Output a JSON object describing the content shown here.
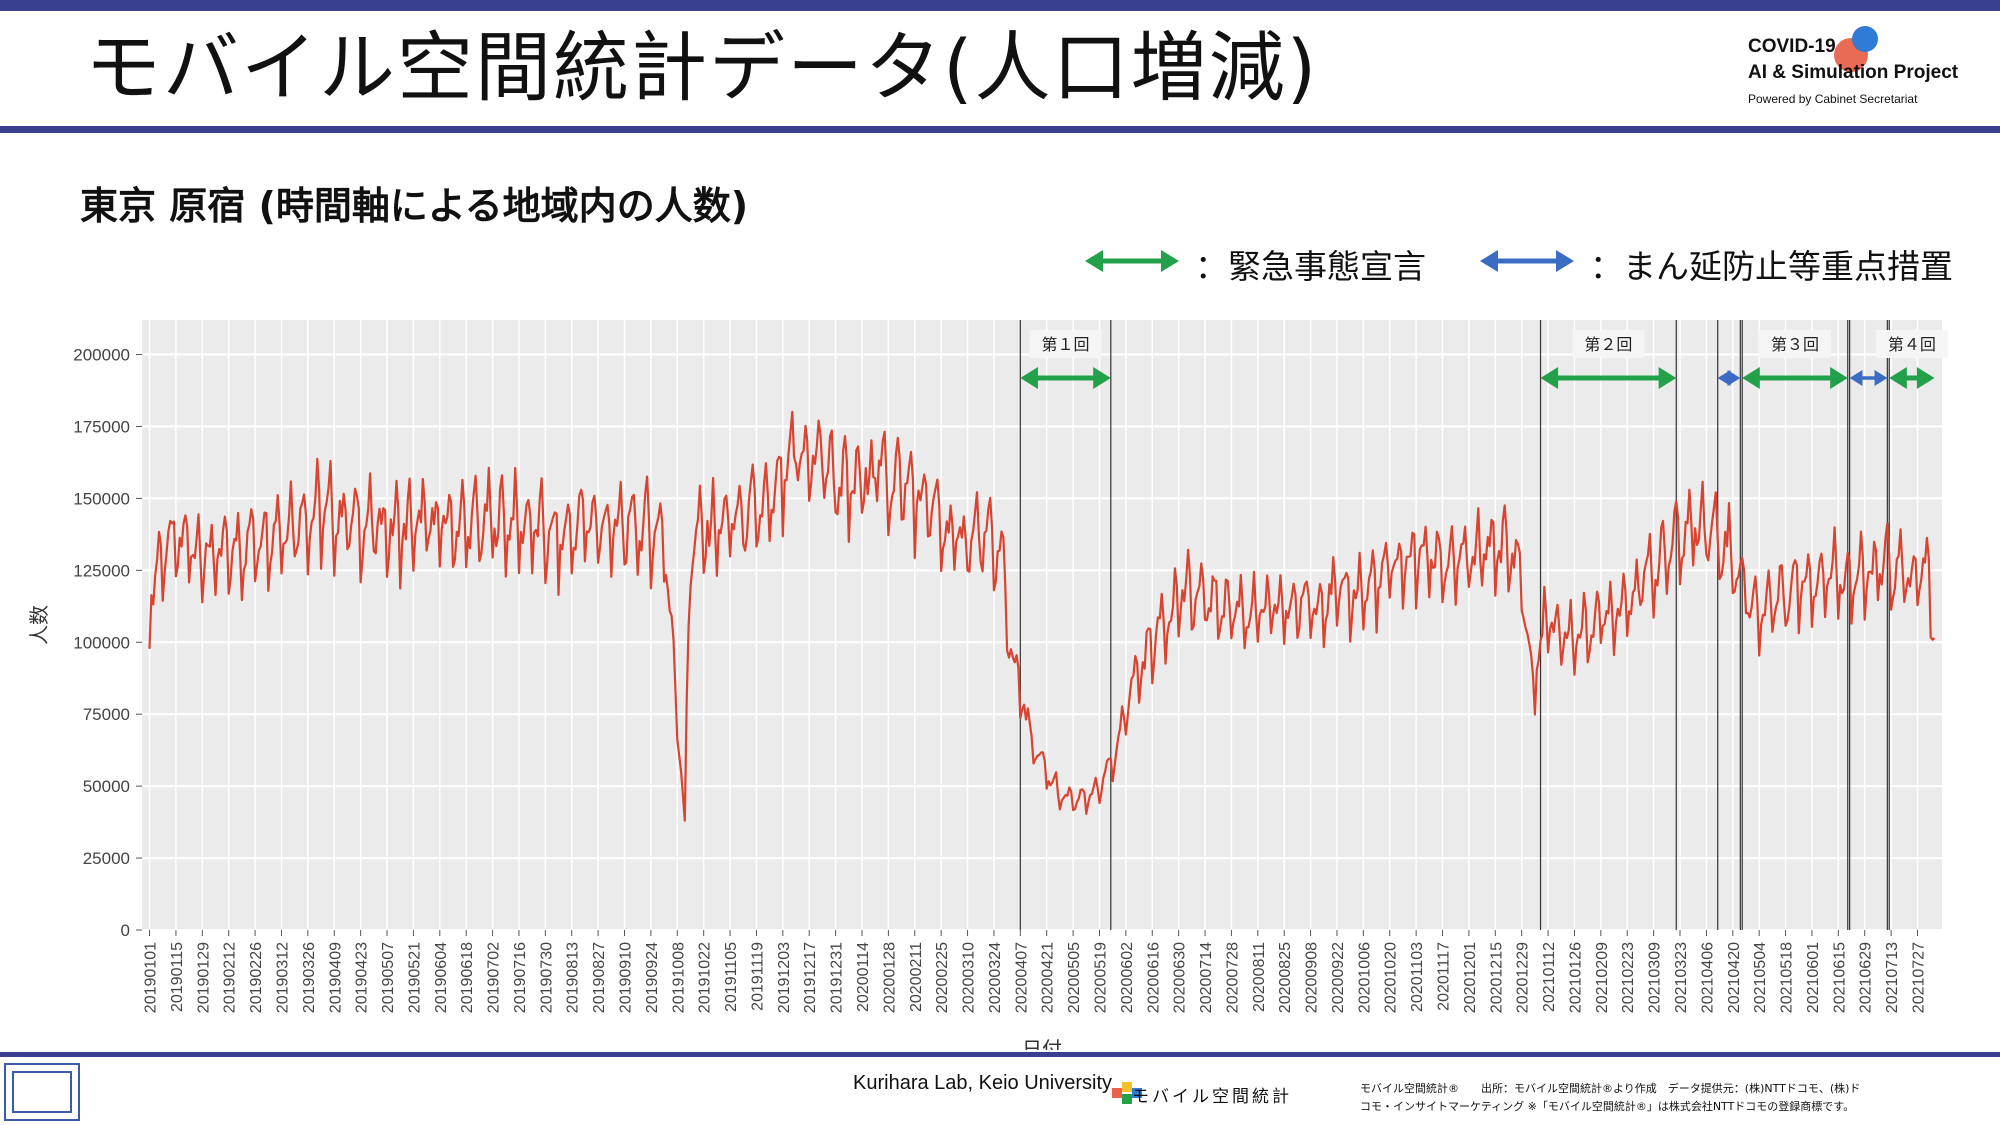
{
  "header": {
    "title": "モバイル空間統計データ(人口増減)",
    "brand_line1": "COVID-19",
    "brand_line2": "AI & Simulation Project",
    "brand_line3": "Powered by Cabinet Secretariat"
  },
  "subtitle": "東京 原宿 (時間軸による地域内の人数)",
  "legend": {
    "emergency": "：緊急事態宣言",
    "emergency_color": "#22a04a",
    "semi": "：まん延防止等重点措置",
    "semi_color": "#3b6cc4"
  },
  "footer": {
    "lab": "Kurihara Lab, Keio University",
    "mobile": "モバイル空間統計",
    "source_line1": "モバイル空間統計®　　出所：モバイル空間統計®より作成　データ提供元：(株)NTTドコモ、(株)ド",
    "source_line2": "コモ・インサイトマーケティング ※「モバイル空間統計®」は株式会社NTTドコモの登録商標です。"
  },
  "chart_data": {
    "type": "line",
    "xlabel": "日付",
    "ylabel": "人数",
    "ylim": [
      0,
      212000
    ],
    "yticks": [
      0,
      25000,
      50000,
      75000,
      100000,
      125000,
      150000,
      175000,
      200000
    ],
    "grid": true,
    "line_color": "#d9432f",
    "x_range": [
      "2019-01-01",
      "2021-08-05"
    ],
    "x_tick_labels": [
      "20190101",
      "20190115",
      "20190129",
      "20190212",
      "20190226",
      "20190312",
      "20190326",
      "20190409",
      "20190423",
      "20190507",
      "20190521",
      "20190604",
      "20190618",
      "20190702",
      "20190716",
      "20190730",
      "20190813",
      "20190827",
      "20190910",
      "20190924",
      "20191008",
      "20191022",
      "20191105",
      "20191119",
      "20191203",
      "20191217",
      "20191231",
      "20200114",
      "20200128",
      "20200211",
      "20200225",
      "20200310",
      "20200324",
      "20200407",
      "20200421",
      "20200505",
      "20200519",
      "20200602",
      "20200616",
      "20200630",
      "20200714",
      "20200728",
      "20200811",
      "20200825",
      "20200908",
      "20200922",
      "20201006",
      "20201020",
      "20201103",
      "20201117",
      "20201201",
      "20201215",
      "20201229",
      "20210112",
      "20210126",
      "20210209",
      "20210223",
      "20210309",
      "20210323",
      "20210406",
      "20210420",
      "20210504",
      "20210518",
      "20210601",
      "20210615",
      "20210629",
      "20210713",
      "20210727"
    ],
    "series": [
      {
        "points": [
          [
            "2019-01-01",
            113000
          ],
          [
            "2019-01-08",
            130000
          ],
          [
            "2019-01-22",
            132000
          ],
          [
            "2019-02-05",
            127000
          ],
          [
            "2019-02-19",
            131000
          ],
          [
            "2019-03-05",
            136000
          ],
          [
            "2019-03-19",
            140000
          ],
          [
            "2019-04-02",
            143000
          ],
          [
            "2019-04-16",
            140000
          ],
          [
            "2019-04-30",
            138000
          ],
          [
            "2019-05-14",
            137000
          ],
          [
            "2019-05-28",
            139000
          ],
          [
            "2019-06-11",
            138000
          ],
          [
            "2019-06-25",
            139000
          ],
          [
            "2019-07-09",
            140000
          ],
          [
            "2019-07-23",
            138000
          ],
          [
            "2019-08-06",
            133000
          ],
          [
            "2019-08-20",
            140000
          ],
          [
            "2019-09-03",
            137000
          ],
          [
            "2019-09-17",
            138000
          ],
          [
            "2019-10-01",
            136000
          ],
          [
            "2019-10-12",
            38000
          ],
          [
            "2019-10-15",
            133000
          ],
          [
            "2019-10-29",
            138000
          ],
          [
            "2019-11-12",
            141000
          ],
          [
            "2019-11-26",
            144000
          ],
          [
            "2019-12-10",
            162000
          ],
          [
            "2019-12-24",
            160000
          ],
          [
            "2020-01-07",
            150000
          ],
          [
            "2020-01-21",
            157000
          ],
          [
            "2020-02-04",
            153000
          ],
          [
            "2020-02-18",
            145000
          ],
          [
            "2020-03-03",
            133000
          ],
          [
            "2020-03-17",
            135000
          ],
          [
            "2020-03-28",
            128000
          ],
          [
            "2020-04-01",
            100000
          ],
          [
            "2020-04-08",
            78000
          ],
          [
            "2020-04-15",
            60000
          ],
          [
            "2020-04-29",
            45000
          ],
          [
            "2020-05-13",
            44000
          ],
          [
            "2020-05-27",
            57000
          ],
          [
            "2020-06-03",
            80000
          ],
          [
            "2020-06-17",
            100000
          ],
          [
            "2020-07-01",
            115000
          ],
          [
            "2020-07-15",
            113000
          ],
          [
            "2020-07-29",
            110000
          ],
          [
            "2020-08-12",
            108000
          ],
          [
            "2020-08-26",
            110000
          ],
          [
            "2020-09-09",
            112000
          ],
          [
            "2020-09-23",
            114000
          ],
          [
            "2020-10-07",
            116000
          ],
          [
            "2020-10-21",
            123000
          ],
          [
            "2020-11-04",
            128000
          ],
          [
            "2020-11-18",
            126000
          ],
          [
            "2020-12-02",
            126000
          ],
          [
            "2020-12-16",
            132000
          ],
          [
            "2020-12-28",
            125000
          ],
          [
            "2021-01-04",
            82000
          ],
          [
            "2021-01-10",
            105000
          ],
          [
            "2021-01-24",
            100000
          ],
          [
            "2021-02-07",
            105000
          ],
          [
            "2021-02-21",
            112000
          ],
          [
            "2021-03-07",
            122000
          ],
          [
            "2021-03-21",
            133000
          ],
          [
            "2021-04-04",
            140000
          ],
          [
            "2021-04-18",
            130000
          ],
          [
            "2021-05-02",
            108000
          ],
          [
            "2021-05-16",
            115000
          ],
          [
            "2021-05-30",
            120000
          ],
          [
            "2021-06-13",
            122000
          ],
          [
            "2021-06-27",
            120000
          ],
          [
            "2021-07-11",
            124000
          ],
          [
            "2021-07-25",
            120000
          ],
          [
            "2021-08-02",
            122000
          ],
          [
            "2021-08-05",
            100000
          ]
        ]
      }
    ],
    "periods": [
      {
        "kind": "emergency",
        "label": "第１回",
        "start": "2020-04-07",
        "end": "2020-05-25"
      },
      {
        "kind": "emergency",
        "label": "第２回",
        "start": "2021-01-08",
        "end": "2021-03-21"
      },
      {
        "kind": "semi",
        "label": "",
        "start": "2021-04-12",
        "end": "2021-04-24"
      },
      {
        "kind": "emergency",
        "label": "第３回",
        "start": "2021-04-25",
        "end": "2021-06-20"
      },
      {
        "kind": "semi",
        "label": "",
        "start": "2021-06-21",
        "end": "2021-07-11"
      },
      {
        "kind": "emergency",
        "label": "第４回",
        "start": "2021-07-12",
        "end": "2021-08-05"
      }
    ]
  }
}
